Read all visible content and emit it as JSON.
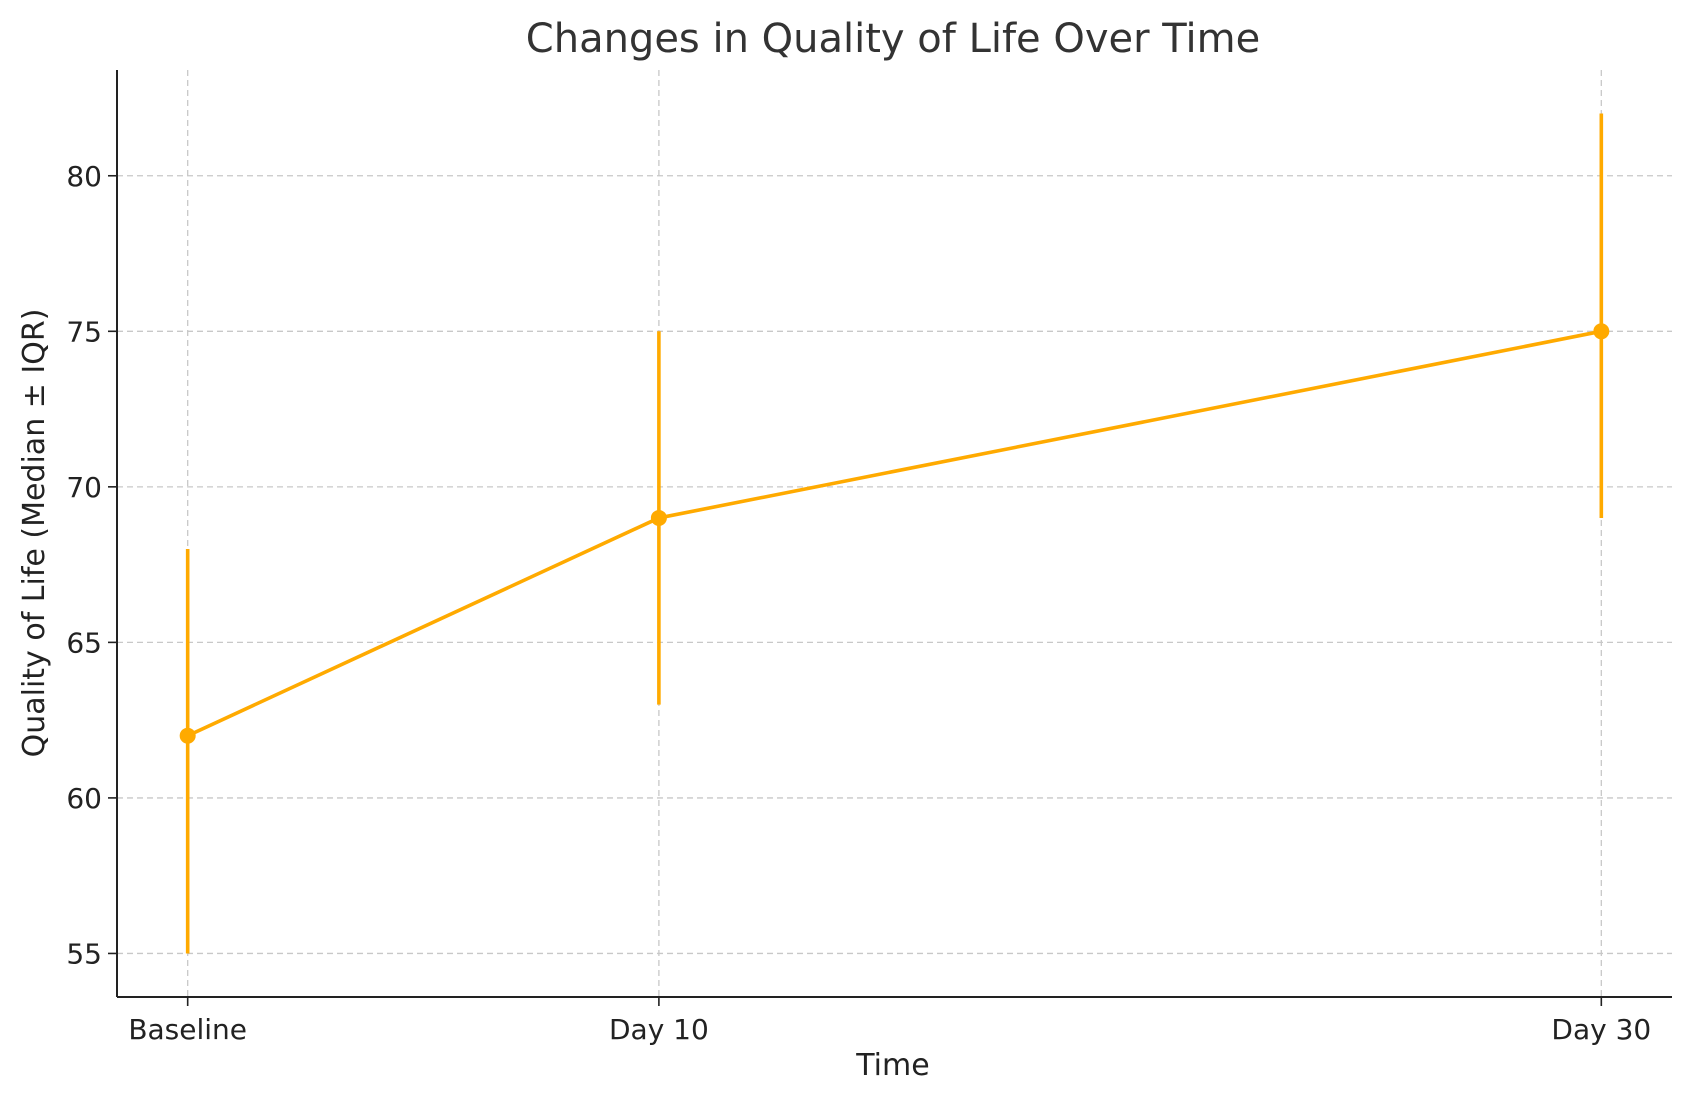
{
  "chart_data": {
    "type": "line",
    "title": "Changes in Quality of Life Over Time",
    "xlabel": "Time",
    "ylabel": "Quality of Life (Median ± IQR)",
    "categories": [
      "Baseline",
      "Day 10",
      "Day 30"
    ],
    "x": [
      0,
      10,
      30
    ],
    "series": [
      {
        "values": [
          62,
          69,
          75
        ],
        "lower": [
          55,
          63,
          69
        ],
        "upper": [
          68,
          75,
          82
        ],
        "color": "#FFAA00"
      }
    ],
    "yticks": [
      55,
      60,
      65,
      70,
      75,
      80
    ],
    "ylim": [
      53.6,
      83.4
    ],
    "xlim": [
      -1.5,
      31.5
    ],
    "grid": true,
    "legend": "none"
  }
}
